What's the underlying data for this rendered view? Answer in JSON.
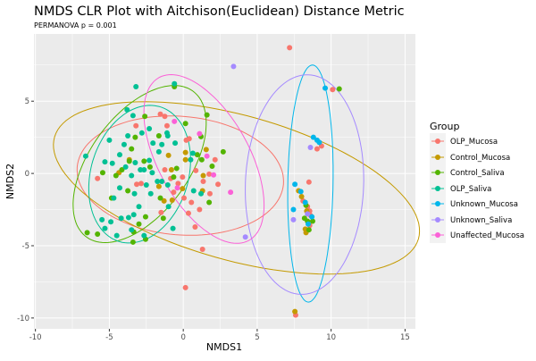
{
  "chart_data": {
    "type": "scatter",
    "title": "NMDS CLR Plot with Aitchison(Euclidean) Distance Metric",
    "subtitle": "PERMANOVA p = 0.001",
    "xlabel": "NMDS1",
    "ylabel": "NMDS2",
    "xlim": [
      -10.1,
      15.7
    ],
    "ylim": [
      -10.75,
      9.65
    ],
    "xticks": [
      -10,
      -5,
      0,
      5,
      10,
      15
    ],
    "yticks": [
      -10,
      -5,
      0,
      5
    ],
    "xtick_labels": [
      "-10",
      "-5",
      "0",
      "5",
      "10",
      "15"
    ],
    "ytick_labels": [
      "-10",
      "-5",
      "0",
      "5"
    ],
    "grid": true,
    "legend": {
      "title": "Group",
      "position": "right"
    },
    "series": [
      {
        "name": "OLP_Mucosa",
        "color": "#F8766D",
        "ellipse": {
          "cx": -0.2,
          "cy": -0.15,
          "a": 7.0,
          "b": 4.1,
          "angle": -5
        },
        "points": [
          [
            -1.55,
            4.1
          ],
          [
            -1.25,
            3.95
          ],
          [
            -3.2,
            3.3
          ],
          [
            -1.1,
            3.3
          ],
          [
            0.2,
            2.3
          ],
          [
            0.4,
            2.4
          ],
          [
            2.15,
            0.95
          ],
          [
            1.75,
            -0.05
          ],
          [
            1.35,
            -0.55
          ],
          [
            2.35,
            -0.75
          ],
          [
            0.85,
            0.2
          ],
          [
            -0.05,
            -0.25
          ],
          [
            -0.35,
            -0.7
          ],
          [
            -0.85,
            -0.35
          ],
          [
            -1.25,
            0.25
          ],
          [
            -2.85,
            -0.7
          ],
          [
            -3.15,
            -0.75
          ],
          [
            -5.8,
            -0.35
          ],
          [
            0.05,
            -1.7
          ],
          [
            0.55,
            -2.0
          ],
          [
            1.8,
            -1.4
          ],
          [
            1.1,
            -2.5
          ],
          [
            0.35,
            -2.75
          ],
          [
            -1.5,
            -2.7
          ],
          [
            0.8,
            -3.7
          ],
          [
            -0.65,
            -1.3
          ],
          [
            1.3,
            -5.25
          ],
          [
            0.15,
            -7.9
          ],
          [
            7.19,
            8.7
          ],
          [
            10.1,
            5.8
          ],
          [
            9.35,
            1.9
          ],
          [
            9.05,
            1.7
          ],
          [
            8.5,
            -0.6
          ],
          [
            8.1,
            -1.9
          ],
          [
            8.4,
            -2.3
          ],
          [
            8.55,
            -2.6
          ],
          [
            8.6,
            -2.9
          ],
          [
            8.55,
            -3.6
          ],
          [
            7.6,
            -9.8
          ]
        ]
      },
      {
        "name": "Control_Mucosa",
        "color": "#C49A00",
        "ellipse": {
          "cx": 3.6,
          "cy": -1.0,
          "a": 12.8,
          "b": 5.0,
          "angle": -16
        },
        "points": [
          [
            0.15,
            1.45
          ],
          [
            1.55,
            1.65
          ],
          [
            0.15,
            0.95
          ],
          [
            -1.0,
            1.25
          ],
          [
            -0.8,
            0.25
          ],
          [
            -3.65,
            0.95
          ],
          [
            -4.35,
            0.05
          ],
          [
            -0.05,
            -1.05
          ],
          [
            1.35,
            -0.15
          ],
          [
            1.3,
            -1.2
          ],
          [
            -1.3,
            -1.9
          ],
          [
            -0.75,
            -1.85
          ],
          [
            -1.65,
            -0.9
          ],
          [
            7.8,
            -1.2
          ],
          [
            8.0,
            -1.6
          ],
          [
            8.35,
            -2.6
          ],
          [
            8.25,
            -3.85
          ],
          [
            8.3,
            -4.1
          ],
          [
            7.55,
            -9.55
          ]
        ]
      },
      {
        "name": "Control_Saliva",
        "color": "#53B400",
        "ellipse": {
          "cx": -2.95,
          "cy": 0.65,
          "a": 6.2,
          "b": 3.37,
          "angle": 55
        },
        "points": [
          [
            -2.6,
            3.95
          ],
          [
            1.6,
            4.05
          ],
          [
            0.15,
            3.45
          ],
          [
            1.2,
            2.55
          ],
          [
            2.7,
            1.5
          ],
          [
            1.95,
            0.5
          ],
          [
            0.95,
            1.3
          ],
          [
            -3.25,
            2.5
          ],
          [
            -4.55,
            -0.15
          ],
          [
            -5.45,
            0.05
          ],
          [
            -4.15,
            0.25
          ],
          [
            -3.5,
            1.7
          ],
          [
            -2.65,
            0.85
          ],
          [
            -1.65,
            2.6
          ],
          [
            -2.25,
            0.45
          ],
          [
            -0.65,
            -0.25
          ],
          [
            -0.45,
            0.35
          ],
          [
            -4.85,
            -1.7
          ],
          [
            -3.75,
            -1.2
          ],
          [
            -1.55,
            -1.7
          ],
          [
            -1.35,
            -3.1
          ],
          [
            -2.55,
            -3.0
          ],
          [
            -3.0,
            -3.5
          ],
          [
            -3.35,
            -4.05
          ],
          [
            -2.55,
            -4.55
          ],
          [
            -5.8,
            -4.2
          ],
          [
            -3.4,
            -4.75
          ],
          [
            1.75,
            -2.0
          ],
          [
            1.25,
            0.95
          ],
          [
            -3.65,
            0.85
          ],
          [
            -0.6,
            6.0
          ],
          [
            -6.5,
            -4.1
          ],
          [
            10.55,
            5.85
          ],
          [
            8.3,
            -2.2
          ],
          [
            8.2,
            -3.1
          ],
          [
            8.4,
            -3.3
          ],
          [
            8.75,
            -3.3
          ],
          [
            8.5,
            -3.9
          ]
        ]
      },
      {
        "name": "OLP_Saliva",
        "color": "#00C094",
        "ellipse": {
          "cx": -2.95,
          "cy": -0.05,
          "a": 4.86,
          "b": 3.3,
          "angle": 74
        },
        "points": [
          [
            -3.2,
            6.0
          ],
          [
            -0.6,
            6.2
          ],
          [
            -3.8,
            4.4
          ],
          [
            -6.6,
            1.2
          ],
          [
            -5.0,
            2.3
          ],
          [
            -5.3,
            0.8
          ],
          [
            -4.8,
            0.7
          ],
          [
            -4.3,
            1.3
          ],
          [
            -4.0,
            2.0
          ],
          [
            -3.75,
            2.6
          ],
          [
            -3.4,
            4.0
          ],
          [
            -2.8,
            2.8
          ],
          [
            -2.3,
            3.1
          ],
          [
            -1.1,
            2.8
          ],
          [
            -0.55,
            2.1
          ],
          [
            -1.65,
            1.5
          ],
          [
            -2.3,
            0.9
          ],
          [
            -2.9,
            0.25
          ],
          [
            -3.5,
            -0.15
          ],
          [
            -3.9,
            0.45
          ],
          [
            -2.1,
            0.05
          ],
          [
            -1.45,
            -0.55
          ],
          [
            -2.5,
            -0.8
          ],
          [
            -3.3,
            -1.4
          ],
          [
            -4.3,
            -1.0
          ],
          [
            -4.7,
            -1.7
          ],
          [
            -2.2,
            -1.4
          ],
          [
            -1.05,
            -0.8
          ],
          [
            0.65,
            1.4
          ],
          [
            0.5,
            0.95
          ],
          [
            0.7,
            -1.2
          ],
          [
            1.2,
            -1.4
          ],
          [
            -1.0,
            -2.3
          ],
          [
            -0.7,
            -3.8
          ],
          [
            -5.5,
            -3.2
          ],
          [
            -4.9,
            -3.35
          ],
          [
            -4.2,
            -3.1
          ],
          [
            -3.7,
            -3.05
          ],
          [
            -3.35,
            -2.85
          ],
          [
            -3.5,
            -3.9
          ],
          [
            -4.5,
            -4.3
          ],
          [
            -5.3,
            -3.8
          ],
          [
            -2.65,
            -4.3
          ],
          [
            -3.0,
            -2.3
          ],
          [
            -1.45,
            2.0
          ],
          [
            -1.05,
            2.6
          ],
          [
            -2.05,
            2.1
          ],
          [
            -2.65,
            0.25
          ],
          [
            -1.75,
            -0.55
          ],
          [
            -3.25,
            0.75
          ]
        ]
      },
      {
        "name": "Unknown_Mucosa",
        "color": "#00B6EB",
        "ellipse": {
          "cx": 8.6,
          "cy": -0.7,
          "a": 8.2,
          "b": 1.53,
          "angle": 89
        },
        "points": [
          [
            9.6,
            5.9
          ],
          [
            8.8,
            2.5
          ],
          [
            9.05,
            2.3
          ],
          [
            9.2,
            2.15
          ],
          [
            7.55,
            -0.75
          ],
          [
            7.95,
            -1.25
          ],
          [
            8.25,
            -2.0
          ],
          [
            8.7,
            -3.0
          ],
          [
            8.45,
            -3.5
          ],
          [
            7.45,
            -2.5
          ]
        ]
      },
      {
        "name": "Unknown_Saliva",
        "color": "#A58AFF",
        "ellipse": {
          "cx": 8.2,
          "cy": -0.77,
          "a": 7.6,
          "b": 4.0,
          "angle": 88
        },
        "points": [
          [
            3.4,
            7.4
          ],
          [
            8.6,
            1.8
          ],
          [
            8.4,
            -2.8
          ],
          [
            7.45,
            -3.2
          ],
          [
            4.2,
            -4.4
          ]
        ]
      },
      {
        "name": "Unaffected_Mucosa",
        "color": "#FB61D7",
        "ellipse": {
          "cx": 1.4,
          "cy": 1.0,
          "a": 6.4,
          "b": 3.1,
          "angle": -62
        },
        "points": [
          [
            -0.6,
            3.6
          ],
          [
            1.1,
            2.75
          ],
          [
            1.6,
            1.2
          ],
          [
            2.05,
            -0.1
          ],
          [
            -0.4,
            -1.0
          ],
          [
            3.2,
            -1.3
          ]
        ]
      }
    ]
  }
}
